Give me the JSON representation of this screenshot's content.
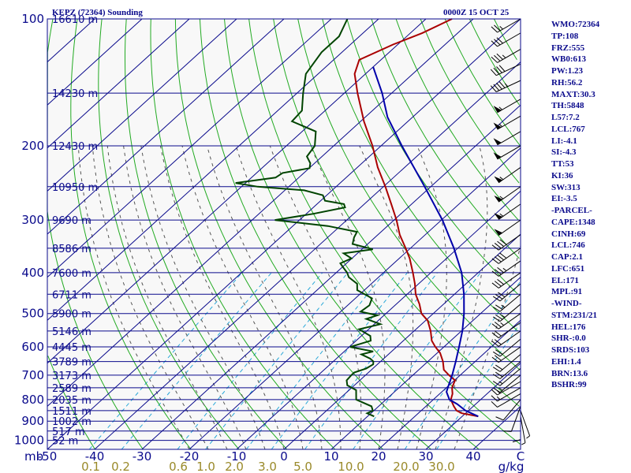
{
  "header": {
    "station": "KEPZ (72364) Sounding",
    "time": "0000Z 15 OCT 25"
  },
  "indices": [
    "WMO:72364",
    "TP:108",
    "FRZ:555",
    "WB0:613",
    "PW:1.23",
    "RH:56.2",
    "MAXT:30.3",
    "TH:5848",
    "L57:7.2",
    "LCL:767",
    "LI:-4.1",
    "SI:-4.3",
    "TT:53",
    "KI:36",
    "SW:313",
    "EI:-3.5",
    "-PARCEL-",
    "CAPE:1348",
    "CINH:69",
    "LCL:746",
    "CAP:2.1",
    "LFC:651",
    "EL:171",
    "MPL:91",
    "-WIND-",
    "STM:231/21",
    "HEL:176",
    "SHR-:0.0",
    "SRDS:103",
    "EHI:1.4",
    "BRN:13.6",
    "BSHR:99"
  ],
  "colors": {
    "isobar": "#0a0a8c",
    "isotherm": "#0a0a8c",
    "dry_adiabat": "#22aa22",
    "mixing_ratio": "#2aa8d8",
    "moist_adiabat": "#555555",
    "temperature": "#aa0000",
    "dewpoint": "#004400",
    "parcel": "#0000aa",
    "axis_text": "#0a0a8c",
    "mixing_text": "#9a8a2a",
    "plot_bg": "#f8f8f8",
    "barb": "#000000"
  },
  "chart_data": {
    "type": "skew-t",
    "pressure_axis": {
      "unit": "mb",
      "ticks": [
        100,
        200,
        300,
        400,
        500,
        600,
        700,
        800,
        900,
        1000
      ],
      "scale": "log",
      "range": [
        100,
        1050
      ]
    },
    "temperature_axis": {
      "unit": "C",
      "ticks": [
        -50,
        -40,
        -30,
        -20,
        -10,
        0,
        10,
        20,
        30,
        40
      ],
      "tick_labels": [
        "-50",
        "-40",
        "-30",
        "-20",
        "-10",
        "0",
        "10",
        "20",
        "30",
        "40"
      ],
      "range": [
        -50,
        50
      ]
    },
    "mixing_ratio_axis": {
      "unit": "g/kg",
      "values": [
        0.1,
        0.2,
        0.6,
        1.0,
        2.0,
        3.0,
        5.0,
        10.0,
        20.0,
        30.0
      ],
      "labels": [
        "0.1",
        "0.2",
        "0.6",
        "1.0",
        "2.0",
        "3.0",
        "5.0",
        "10.0",
        "20.0",
        "30.0"
      ]
    },
    "heights": [
      {
        "p": 100,
        "label": "16610 m"
      },
      {
        "p": 150,
        "label": "14230 m"
      },
      {
        "p": 200,
        "label": "12430 m"
      },
      {
        "p": 250,
        "label": "10950 m"
      },
      {
        "p": 300,
        "label": "9690 m"
      },
      {
        "p": 350,
        "label": "8586 m"
      },
      {
        "p": 400,
        "label": "7600 m"
      },
      {
        "p": 450,
        "label": "6711 m"
      },
      {
        "p": 500,
        "label": "5900 m"
      },
      {
        "p": 550,
        "label": "5146 m"
      },
      {
        "p": 600,
        "label": "4445 m"
      },
      {
        "p": 650,
        "label": "3789 m"
      },
      {
        "p": 700,
        "label": "3173 m"
      },
      {
        "p": 750,
        "label": "2589 m"
      },
      {
        "p": 800,
        "label": "2035 m"
      },
      {
        "p": 850,
        "label": "1511 m"
      },
      {
        "p": 900,
        "label": "1002 m"
      },
      {
        "p": 950,
        "label": "517 m"
      },
      {
        "p": 1000,
        "label": "52 m"
      }
    ],
    "series": [
      {
        "key": "temperature",
        "points": [
          [
            877,
            33.4
          ],
          [
            862,
            29.2
          ],
          [
            850,
            27.5
          ],
          [
            830,
            25.9
          ],
          [
            800,
            23.7
          ],
          [
            775,
            22.7
          ],
          [
            750,
            21.2
          ],
          [
            720,
            20.1
          ],
          [
            700,
            17.6
          ],
          [
            680,
            15.3
          ],
          [
            650,
            13.2
          ],
          [
            620,
            10.6
          ],
          [
            600,
            8.2
          ],
          [
            580,
            6.0
          ],
          [
            550,
            3.5
          ],
          [
            520,
            0.5
          ],
          [
            500,
            -2.5
          ],
          [
            475,
            -5.1
          ],
          [
            450,
            -8.2
          ],
          [
            425,
            -10.8
          ],
          [
            400,
            -13.8
          ],
          [
            370,
            -17.8
          ],
          [
            350,
            -21.0
          ],
          [
            325,
            -25.4
          ],
          [
            300,
            -29.5
          ],
          [
            275,
            -34.3
          ],
          [
            250,
            -39.6
          ],
          [
            225,
            -45.7
          ],
          [
            200,
            -51.8
          ],
          [
            175,
            -59.3
          ],
          [
            150,
            -67.2
          ],
          [
            135,
            -72.3
          ],
          [
            125,
            -74.6
          ],
          [
            115,
            -71.0
          ],
          [
            108,
            -67.5
          ],
          [
            100,
            -64.5
          ]
        ]
      },
      {
        "key": "dewpoint",
        "points": [
          [
            877,
            11.4
          ],
          [
            862,
            9.2
          ],
          [
            850,
            9.8
          ],
          [
            830,
            8.5
          ],
          [
            800,
            3.7
          ],
          [
            760,
            1.5
          ],
          [
            740,
            -1.5
          ],
          [
            720,
            -2.8
          ],
          [
            700,
            -3.0
          ],
          [
            690,
            -3.0
          ],
          [
            675,
            -1.4
          ],
          [
            660,
            -0.9
          ],
          [
            650,
            -1.5
          ],
          [
            640,
            -2.8
          ],
          [
            625,
            -5.7
          ],
          [
            615,
            -3.9
          ],
          [
            600,
            -9.8
          ],
          [
            580,
            -6.9
          ],
          [
            565,
            -8.1
          ],
          [
            545,
            -12.0
          ],
          [
            530,
            -8.7
          ],
          [
            515,
            -12.9
          ],
          [
            505,
            -11.4
          ],
          [
            495,
            -15.8
          ],
          [
            478,
            -15.4
          ],
          [
            460,
            -16.5
          ],
          [
            440,
            -21.5
          ],
          [
            425,
            -23.0
          ],
          [
            410,
            -26.3
          ],
          [
            400,
            -27.7
          ],
          [
            390,
            -29.5
          ],
          [
            380,
            -31.3
          ],
          [
            370,
            -30.1
          ],
          [
            360,
            -32.9
          ],
          [
            352,
            -27.7
          ],
          [
            342,
            -33.2
          ],
          [
            330,
            -34.4
          ],
          [
            320,
            -35.1
          ],
          [
            310,
            -42.6
          ],
          [
            300,
            -55.2
          ],
          [
            290,
            -48.5
          ],
          [
            280,
            -43.3
          ],
          [
            275,
            -44.3
          ],
          [
            270,
            -49.1
          ],
          [
            262,
            -50.8
          ],
          [
            255,
            -55.9
          ],
          [
            250,
            -66.6
          ],
          [
            245,
            -72.1
          ],
          [
            238,
            -64.9
          ],
          [
            232,
            -64.5
          ],
          [
            226,
            -59.9
          ],
          [
            220,
            -60.9
          ],
          [
            212,
            -63.2
          ],
          [
            200,
            -64.0
          ],
          [
            185,
            -67.1
          ],
          [
            175,
            -74.5
          ],
          [
            165,
            -74.9
          ],
          [
            150,
            -78.7
          ],
          [
            135,
            -82.6
          ],
          [
            120,
            -84.3
          ],
          [
            110,
            -84.3
          ],
          [
            100,
            -86.6
          ]
        ]
      },
      {
        "key": "parcel",
        "points": [
          [
            877,
            33.4
          ],
          [
            850,
            29.4
          ],
          [
            820,
            26.1
          ],
          [
            800,
            23.4
          ],
          [
            767,
            21.0
          ],
          [
            750,
            20.3
          ],
          [
            700,
            18.3
          ],
          [
            650,
            15.9
          ],
          [
            600,
            13.2
          ],
          [
            550,
            10.2
          ],
          [
            500,
            6.5
          ],
          [
            450,
            2.0
          ],
          [
            400,
            -3.5
          ],
          [
            350,
            -10.8
          ],
          [
            300,
            -19.8
          ],
          [
            250,
            -31.3
          ],
          [
            200,
            -45.6
          ],
          [
            171,
            -55.3
          ],
          [
            150,
            -62.0
          ],
          [
            130,
            -70.0
          ]
        ]
      }
    ],
    "wind_barbs": [
      {
        "p": 877,
        "dir": 170,
        "spd": 5
      },
      {
        "p": 860,
        "dir": 180,
        "spd": 8
      },
      {
        "p": 850,
        "dir": 160,
        "spd": 6
      },
      {
        "p": 830,
        "dir": 200,
        "spd": 8
      },
      {
        "p": 800,
        "dir": 220,
        "spd": 10
      },
      {
        "p": 775,
        "dir": 240,
        "spd": 10
      },
      {
        "p": 750,
        "dir": 240,
        "spd": 15
      },
      {
        "p": 725,
        "dir": 240,
        "spd": 15
      },
      {
        "p": 700,
        "dir": 230,
        "spd": 15
      },
      {
        "p": 675,
        "dir": 230,
        "spd": 15
      },
      {
        "p": 650,
        "dir": 230,
        "spd": 20
      },
      {
        "p": 625,
        "dir": 230,
        "spd": 20
      },
      {
        "p": 600,
        "dir": 235,
        "spd": 20
      },
      {
        "p": 575,
        "dir": 230,
        "spd": 20
      },
      {
        "p": 550,
        "dir": 235,
        "spd": 20
      },
      {
        "p": 525,
        "dir": 235,
        "spd": 20
      },
      {
        "p": 500,
        "dir": 235,
        "spd": 25
      },
      {
        "p": 475,
        "dir": 230,
        "spd": 25
      },
      {
        "p": 450,
        "dir": 230,
        "spd": 25
      },
      {
        "p": 425,
        "dir": 230,
        "spd": 30
      },
      {
        "p": 400,
        "dir": 235,
        "spd": 30
      },
      {
        "p": 375,
        "dir": 235,
        "spd": 35
      },
      {
        "p": 350,
        "dir": 235,
        "spd": 40
      },
      {
        "p": 325,
        "dir": 235,
        "spd": 40
      },
      {
        "p": 300,
        "dir": 235,
        "spd": 50
      },
      {
        "p": 275,
        "dir": 235,
        "spd": 55
      },
      {
        "p": 250,
        "dir": 235,
        "spd": 55
      },
      {
        "p": 225,
        "dir": 235,
        "spd": 55
      },
      {
        "p": 200,
        "dir": 240,
        "spd": 50
      },
      {
        "p": 185,
        "dir": 240,
        "spd": 50
      },
      {
        "p": 170,
        "dir": 240,
        "spd": 55
      },
      {
        "p": 155,
        "dir": 240,
        "spd": 55
      },
      {
        "p": 140,
        "dir": 245,
        "spd": 45
      },
      {
        "p": 128,
        "dir": 245,
        "spd": 40
      },
      {
        "p": 118,
        "dir": 240,
        "spd": 35
      },
      {
        "p": 108,
        "dir": 240,
        "spd": 30
      },
      {
        "p": 100,
        "dir": 240,
        "spd": 25
      }
    ],
    "grid": true
  }
}
